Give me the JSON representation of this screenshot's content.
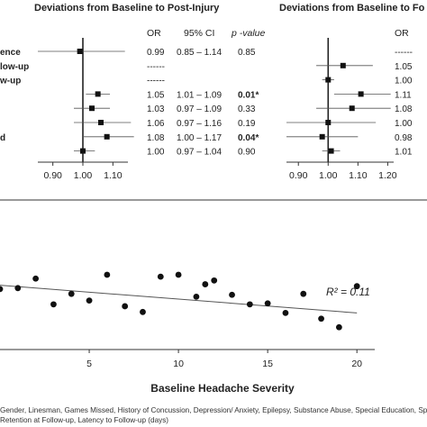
{
  "chart_data": [
    {
      "type": "forest",
      "title": "Deviations from Baseline to Post-Injury",
      "columns": {
        "or": "OR",
        "ci": "95% CI",
        "p": "p -value"
      },
      "row_labels": [
        "ence",
        "low-up",
        "w-up",
        "",
        "",
        "",
        "d",
        ""
      ],
      "rows": [
        {
          "or": 0.99,
          "ci_low": 0.85,
          "ci_high": 1.14,
          "or_text": "0.99",
          "ci_text": "0.85 – 1.14",
          "p_text": "0.85",
          "p_bold": false
        },
        {
          "or": null,
          "ci_low": null,
          "ci_high": null,
          "or_text": "------",
          "ci_text": "",
          "p_text": "",
          "p_bold": false
        },
        {
          "or": null,
          "ci_low": null,
          "ci_high": null,
          "or_text": "------",
          "ci_text": "",
          "p_text": "",
          "p_bold": false
        },
        {
          "or": 1.05,
          "ci_low": 1.01,
          "ci_high": 1.09,
          "or_text": "1.05",
          "ci_text": "1.01 – 1.09",
          "p_text": "0.01*",
          "p_bold": true
        },
        {
          "or": 1.03,
          "ci_low": 0.97,
          "ci_high": 1.09,
          "or_text": "1.03",
          "ci_text": "0.97 – 1.09",
          "p_text": "0.33",
          "p_bold": false
        },
        {
          "or": 1.06,
          "ci_low": 0.97,
          "ci_high": 1.16,
          "or_text": "1.06",
          "ci_text": "0.97 – 1.16",
          "p_text": "0.19",
          "p_bold": false
        },
        {
          "or": 1.08,
          "ci_low": 1.0,
          "ci_high": 1.17,
          "or_text": "1.08",
          "ci_text": "1.00 – 1.17",
          "p_text": "0.04*",
          "p_bold": true
        },
        {
          "or": 1.0,
          "ci_low": 0.97,
          "ci_high": 1.04,
          "or_text": "1.00",
          "ci_text": "0.97 – 1.04",
          "p_text": "0.90",
          "p_bold": false
        }
      ],
      "xticks": [
        "0.90",
        "1.00",
        "1.10"
      ],
      "xlim": [
        0.85,
        1.15
      ]
    },
    {
      "type": "forest",
      "title": "Deviations from Baseline to Fo",
      "columns": {
        "or": "OR"
      },
      "rows": [
        {
          "or": null,
          "ci_low": null,
          "ci_high": null,
          "or_text": "------"
        },
        {
          "or": 1.05,
          "ci_low": 0.96,
          "ci_high": 1.15,
          "or_text": "1.05"
        },
        {
          "or": 1.0,
          "ci_low": 0.98,
          "ci_high": 1.02,
          "or_text": "1.00"
        },
        {
          "or": 1.11,
          "ci_low": 1.02,
          "ci_high": 1.21,
          "or_text": "1.11"
        },
        {
          "or": 1.08,
          "ci_low": 0.96,
          "ci_high": 1.21,
          "or_text": "1.08"
        },
        {
          "or": 1.0,
          "ci_low": 0.86,
          "ci_high": 1.16,
          "or_text": "1.00"
        },
        {
          "or": 0.98,
          "ci_low": 0.86,
          "ci_high": 1.1,
          "or_text": "0.98"
        },
        {
          "or": 1.01,
          "ci_low": 0.98,
          "ci_high": 1.04,
          "or_text": "1.01"
        }
      ],
      "xticks": [
        "0.90",
        "1.00",
        "1.10",
        "1.20"
      ],
      "xlim": [
        0.86,
        1.22
      ]
    },
    {
      "type": "scatter",
      "xlabel": "Baseline Headache Severity",
      "xticks": [
        5,
        10,
        15,
        20
      ],
      "xlim": [
        0,
        21
      ],
      "ylim": [
        0,
        10
      ],
      "annotation": "R² = 0.11",
      "points": [
        {
          "x": 0,
          "y": 5.2
        },
        {
          "x": 1,
          "y": 5.3
        },
        {
          "x": 2,
          "y": 6.3
        },
        {
          "x": 3,
          "y": 3.6
        },
        {
          "x": 4,
          "y": 4.7
        },
        {
          "x": 5,
          "y": 4.0
        },
        {
          "x": 6,
          "y": 6.7
        },
        {
          "x": 7,
          "y": 3.4
        },
        {
          "x": 8,
          "y": 2.8
        },
        {
          "x": 9,
          "y": 6.5
        },
        {
          "x": 10,
          "y": 6.7
        },
        {
          "x": 11,
          "y": 4.4
        },
        {
          "x": 11.5,
          "y": 5.7
        },
        {
          "x": 12,
          "y": 6.1
        },
        {
          "x": 13,
          "y": 4.6
        },
        {
          "x": 14,
          "y": 3.6
        },
        {
          "x": 15,
          "y": 3.7
        },
        {
          "x": 16,
          "y": 2.7
        },
        {
          "x": 17,
          "y": 4.7
        },
        {
          "x": 18,
          "y": 2.1
        },
        {
          "x": 19,
          "y": 1.2
        },
        {
          "x": 20,
          "y": 5.5
        }
      ],
      "trend": {
        "x1": 0,
        "y1": 5.6,
        "x2": 20,
        "y2": 2.7
      }
    }
  ],
  "footnote": {
    "line1": "Gender, Linesman, Games Missed, History of Concussion, Depression/ Anxiety, Epilepsy, Substance Abuse, Special Education, Spe",
    "line2": "Retention at Follow-up, Latency to Follow-up (days)"
  }
}
